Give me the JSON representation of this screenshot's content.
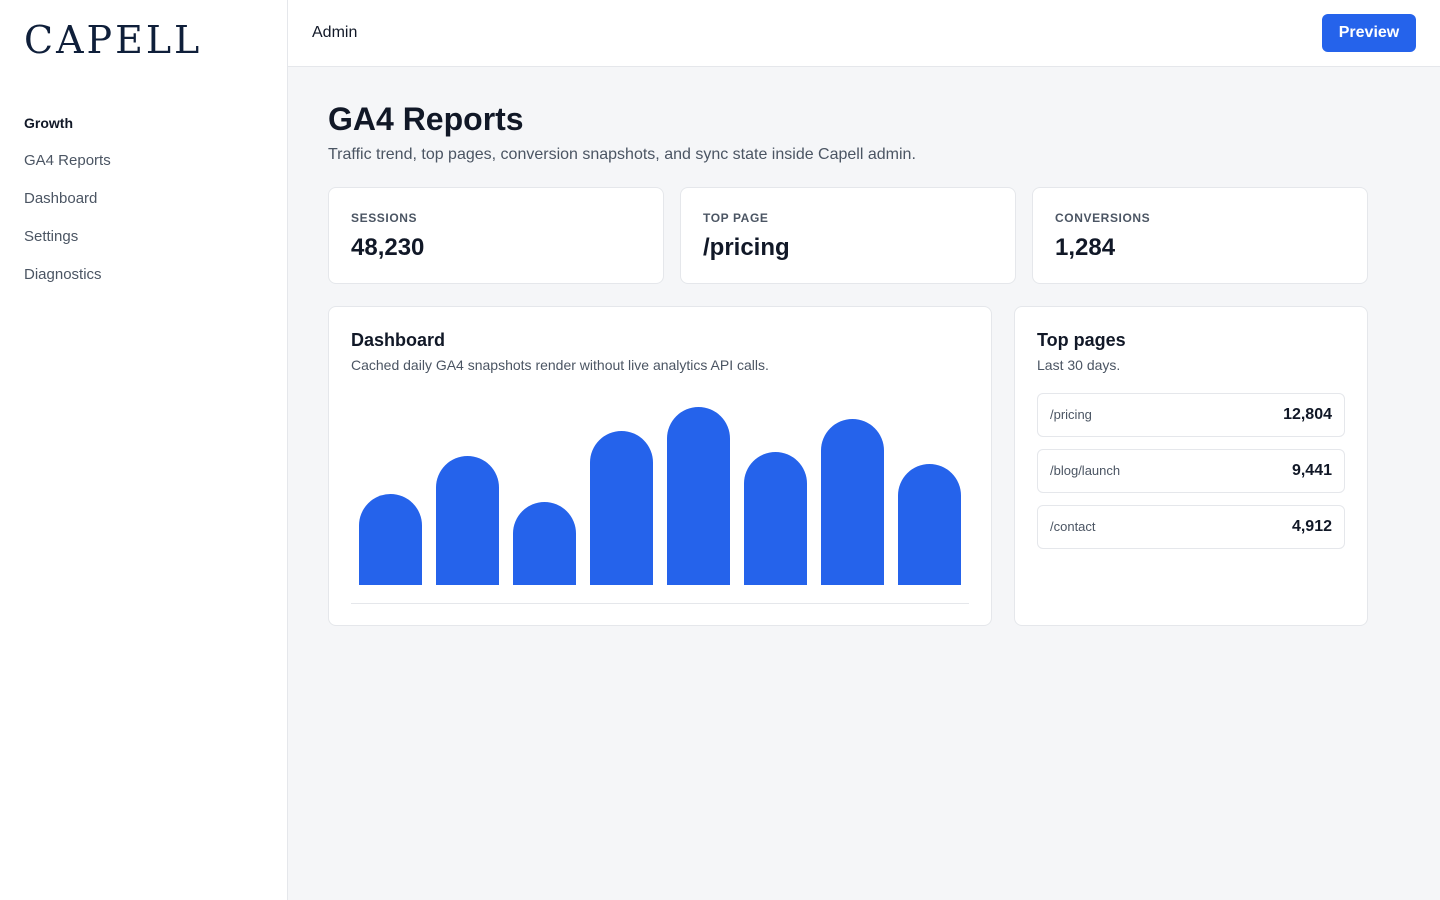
{
  "brand": {
    "logo": "CAPELL"
  },
  "sidebar": {
    "group": "Growth",
    "items": [
      {
        "label": "GA4 Reports"
      },
      {
        "label": "Dashboard"
      },
      {
        "label": "Settings"
      },
      {
        "label": "Diagnostics"
      }
    ]
  },
  "topbar": {
    "title": "Admin",
    "preview_label": "Preview",
    "accent": "#2563eb"
  },
  "page": {
    "title": "GA4 Reports",
    "subtitle": "Traffic trend, top pages, conversion snapshots, and sync state inside Capell admin."
  },
  "stats": [
    {
      "label": "Sessions",
      "value": "48,230"
    },
    {
      "label": "Top page",
      "value": "/pricing"
    },
    {
      "label": "Conversions",
      "value": "1,284"
    }
  ],
  "dashboard": {
    "title": "Dashboard",
    "subtitle": "Cached daily GA4 snapshots render without live analytics API calls."
  },
  "chart_data": {
    "type": "bar",
    "values": [
      46,
      65,
      42,
      78,
      90,
      67,
      84,
      61
    ],
    "ylim": [
      0,
      100
    ],
    "grid": false,
    "color": "#2563eb"
  },
  "top_pages": {
    "title": "Top pages",
    "subtitle": "Last 30 days.",
    "rows": [
      {
        "path": "/pricing",
        "count": "12,804"
      },
      {
        "path": "/blog/launch",
        "count": "9,441"
      },
      {
        "path": "/contact",
        "count": "4,912"
      }
    ]
  }
}
